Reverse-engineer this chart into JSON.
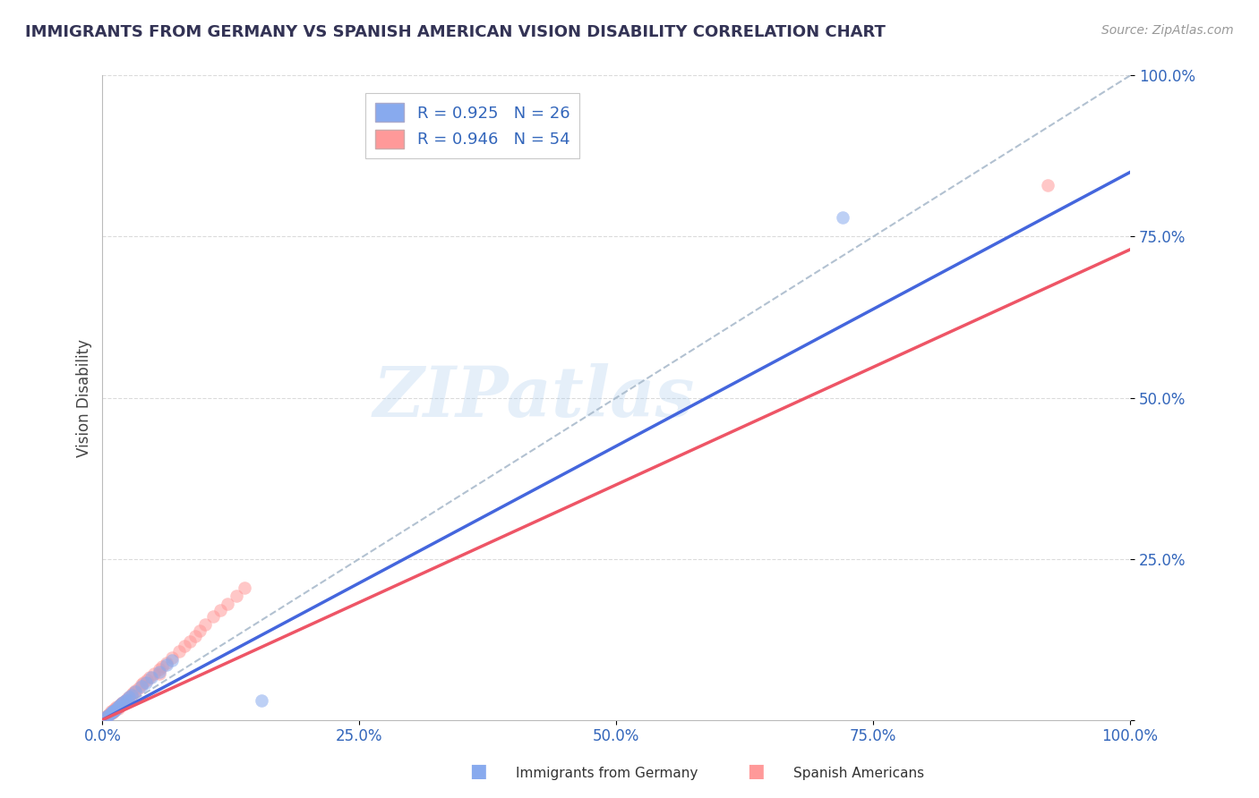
{
  "title": "IMMIGRANTS FROM GERMANY VS SPANISH AMERICAN VISION DISABILITY CORRELATION CHART",
  "source": "Source: ZipAtlas.com",
  "ylabel_label": "Vision Disability",
  "legend_blue_label": "Immigrants from Germany",
  "legend_pink_label": "Spanish Americans",
  "R_blue": 0.925,
  "N_blue": 26,
  "R_pink": 0.946,
  "N_pink": 54,
  "blue_scatter_color": "#88AAEE",
  "pink_scatter_color": "#FF9999",
  "blue_line_color": "#4466DD",
  "pink_line_color": "#EE5566",
  "ref_line_color": "#AABBCC",
  "watermark": "ZIPatlas",
  "blue_scatter_x": [
    0.003,
    0.005,
    0.006,
    0.008,
    0.009,
    0.01,
    0.011,
    0.012,
    0.014,
    0.015,
    0.016,
    0.018,
    0.02,
    0.022,
    0.024,
    0.026,
    0.028,
    0.032,
    0.038,
    0.042,
    0.048,
    0.055,
    0.062,
    0.068,
    0.72,
    0.155
  ],
  "blue_scatter_y": [
    0.004,
    0.006,
    0.007,
    0.01,
    0.012,
    0.013,
    0.014,
    0.015,
    0.018,
    0.02,
    0.022,
    0.025,
    0.028,
    0.03,
    0.032,
    0.035,
    0.038,
    0.044,
    0.052,
    0.058,
    0.066,
    0.075,
    0.085,
    0.092,
    0.78,
    0.03
  ],
  "pink_scatter_x": [
    0.002,
    0.003,
    0.004,
    0.005,
    0.006,
    0.007,
    0.008,
    0.009,
    0.01,
    0.011,
    0.012,
    0.013,
    0.014,
    0.015,
    0.016,
    0.017,
    0.018,
    0.019,
    0.02,
    0.022,
    0.024,
    0.026,
    0.028,
    0.03,
    0.032,
    0.035,
    0.038,
    0.04,
    0.043,
    0.046,
    0.05,
    0.055,
    0.058,
    0.062,
    0.068,
    0.075,
    0.08,
    0.085,
    0.09,
    0.095,
    0.1,
    0.108,
    0.115,
    0.122,
    0.13,
    0.138,
    0.008,
    0.01,
    0.012,
    0.014,
    0.016,
    0.018,
    0.92,
    0.055
  ],
  "pink_scatter_y": [
    0.003,
    0.004,
    0.005,
    0.006,
    0.008,
    0.009,
    0.01,
    0.011,
    0.012,
    0.013,
    0.015,
    0.016,
    0.017,
    0.018,
    0.02,
    0.022,
    0.024,
    0.026,
    0.028,
    0.03,
    0.033,
    0.036,
    0.04,
    0.043,
    0.046,
    0.05,
    0.055,
    0.058,
    0.062,
    0.066,
    0.072,
    0.079,
    0.083,
    0.089,
    0.097,
    0.107,
    0.115,
    0.122,
    0.13,
    0.138,
    0.148,
    0.16,
    0.17,
    0.18,
    0.192,
    0.205,
    0.013,
    0.015,
    0.018,
    0.02,
    0.022,
    0.025,
    0.83,
    0.072
  ],
  "blue_trend": [
    0.0,
    0.85
  ],
  "pink_trend": [
    0.0,
    0.73
  ],
  "xlim": [
    0.0,
    1.0
  ],
  "ylim": [
    0.0,
    1.0
  ],
  "xticks": [
    0.0,
    0.25,
    0.5,
    0.75,
    1.0
  ],
  "yticks": [
    0.0,
    0.25,
    0.5,
    0.75,
    1.0
  ],
  "xtick_labels": [
    "0.0%",
    "25.0%",
    "50.0%",
    "75.0%",
    "100.0%"
  ],
  "ytick_labels": [
    "",
    "25.0%",
    "50.0%",
    "75.0%",
    "100.0%"
  ],
  "background_color": "#FFFFFF",
  "grid_color": "#CCCCCC"
}
